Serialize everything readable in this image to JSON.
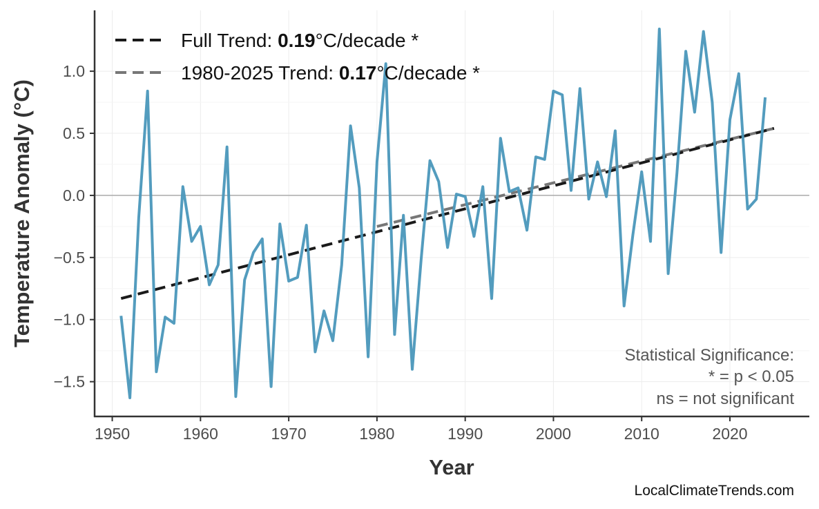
{
  "chart_data": {
    "type": "line",
    "xlabel": "Year",
    "ylabel": "Temperature Anomaly (°C)",
    "xlim": [
      1948,
      2029
    ],
    "ylim": [
      -1.78,
      1.49
    ],
    "xticks": [
      1950,
      1960,
      1970,
      1980,
      1990,
      2000,
      2010,
      2020
    ],
    "yticks": [
      -1.5,
      -1.0,
      -0.5,
      0.0,
      0.5,
      1.0
    ],
    "ytick_labels": [
      "−1.5",
      "−1.0",
      "−0.5",
      "0.0",
      "0.5",
      "1.0"
    ],
    "grid": true,
    "legend_position": "top-left",
    "series_color": "#4a97bb",
    "x": [
      1951,
      1952,
      1953,
      1954,
      1955,
      1956,
      1957,
      1958,
      1959,
      1960,
      1961,
      1962,
      1963,
      1964,
      1965,
      1966,
      1967,
      1968,
      1969,
      1970,
      1971,
      1972,
      1973,
      1974,
      1975,
      1976,
      1977,
      1978,
      1979,
      1980,
      1981,
      1982,
      1983,
      1984,
      1985,
      1986,
      1987,
      1988,
      1989,
      1990,
      1991,
      1992,
      1993,
      1994,
      1995,
      1996,
      1997,
      1998,
      1999,
      2000,
      2001,
      2002,
      2003,
      2004,
      2005,
      2006,
      2007,
      2008,
      2009,
      2010,
      2011,
      2012,
      2013,
      2014,
      2015,
      2016,
      2017,
      2018,
      2019,
      2020,
      2021,
      2022,
      2023,
      2024
    ],
    "values": [
      -0.97,
      -1.63,
      -0.18,
      0.84,
      -1.42,
      -0.98,
      -1.03,
      0.07,
      -0.37,
      -0.25,
      -0.72,
      -0.56,
      0.39,
      -1.62,
      -0.68,
      -0.46,
      -0.35,
      -1.54,
      -0.23,
      -0.69,
      -0.66,
      -0.24,
      -1.26,
      -0.93,
      -1.17,
      -0.56,
      0.56,
      0.06,
      -1.3,
      0.27,
      1.06,
      -1.12,
      -0.16,
      -1.4,
      -0.52,
      0.28,
      0.11,
      -0.42,
      0.01,
      -0.01,
      -0.33,
      0.07,
      -0.83,
      0.46,
      0.03,
      0.06,
      -0.28,
      0.31,
      0.29,
      0.84,
      0.81,
      0.04,
      0.86,
      -0.03,
      0.27,
      -0.01,
      0.52,
      -0.89,
      -0.32,
      0.19,
      -0.37,
      1.34,
      -0.63,
      0.18,
      1.16,
      0.67,
      1.32,
      0.75,
      -0.46,
      0.61,
      0.98,
      -0.11,
      -0.03,
      0.79
    ],
    "trends": [
      {
        "name_prefix": "Full Trend: ",
        "rate": "0.19",
        "suffix": "°C/decade *",
        "x": [
          1951,
          2025
        ],
        "y": [
          -0.83,
          0.54
        ],
        "color": "#1a1a1a"
      },
      {
        "name_prefix": "1980-2025 Trend: ",
        "rate": "0.17",
        "suffix": "°C/decade *",
        "x": [
          1980,
          2025
        ],
        "y": [
          -0.25,
          0.54
        ],
        "color": "#777777"
      }
    ],
    "annotation": [
      "Statistical Significance:",
      "* = p < 0.05",
      "ns = not significant"
    ],
    "source": "LocalClimateTrends.com"
  }
}
